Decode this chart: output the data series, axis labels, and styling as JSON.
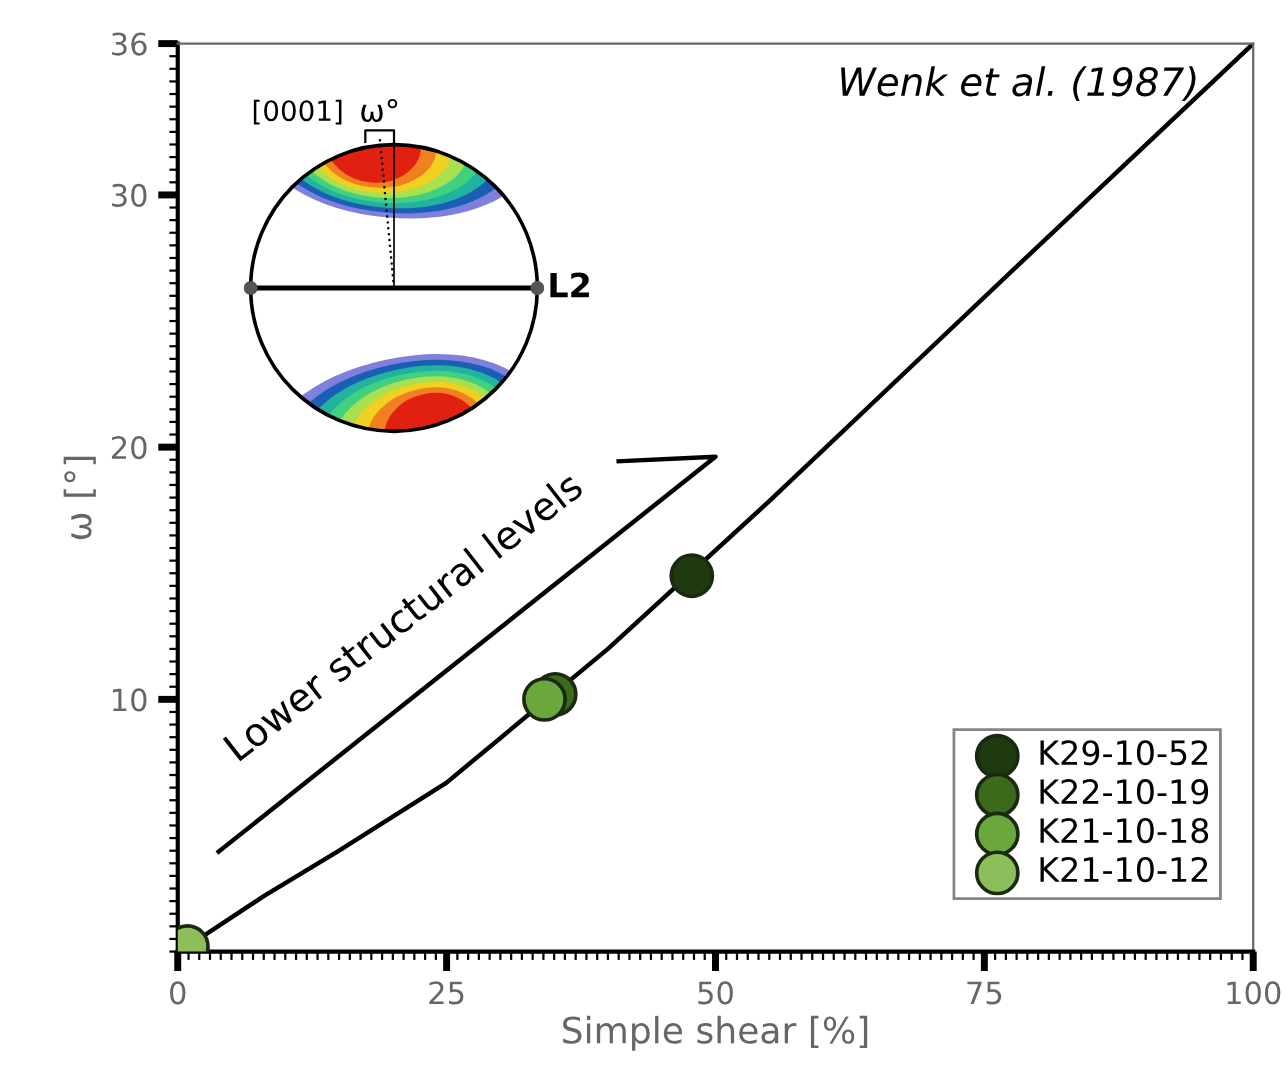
{
  "chart_data": {
    "type": "scatter",
    "xlabel": "Simple shear [%]",
    "ylabel": "ω [°]",
    "xlim": [
      0,
      100
    ],
    "ylim": [
      0,
      36
    ],
    "xticks": [
      0,
      25,
      50,
      75,
      100
    ],
    "yticks": [
      10,
      20,
      30,
      36
    ],
    "grid": false,
    "legend": "bottom right",
    "annotations": [
      "Wenk et al. (1987)",
      "Lower structural levels",
      "[0001]",
      "ω°",
      "L2"
    ],
    "series": [
      {
        "type": "line",
        "color": "#000000",
        "line_style": "solid",
        "x": [
          0.9,
          8,
          15,
          25,
          40,
          55.1,
          78.1,
          100
        ],
        "values": [
          0.2,
          2.2,
          4.0,
          6.7,
          12.0,
          17.9,
          27.2,
          36
        ]
      },
      {
        "name": "K29-10-52",
        "color": "#1f3a0e",
        "marker": "circle",
        "x": [
          47.8
        ],
        "values": [
          14.9
        ]
      },
      {
        "name": "K22-10-19",
        "color": "#3b6b1a",
        "marker": "circle",
        "x": [
          35.1
        ],
        "values": [
          10.2
        ]
      },
      {
        "name": "K21-10-18",
        "color": "#6aa83e",
        "marker": "circle",
        "x": [
          34.1
        ],
        "values": [
          10.0
        ]
      },
      {
        "name": "K21-10-12",
        "color": "#8cbf5c",
        "marker": "circle",
        "x": [
          0.9
        ],
        "values": [
          0.2
        ]
      }
    ]
  }
}
